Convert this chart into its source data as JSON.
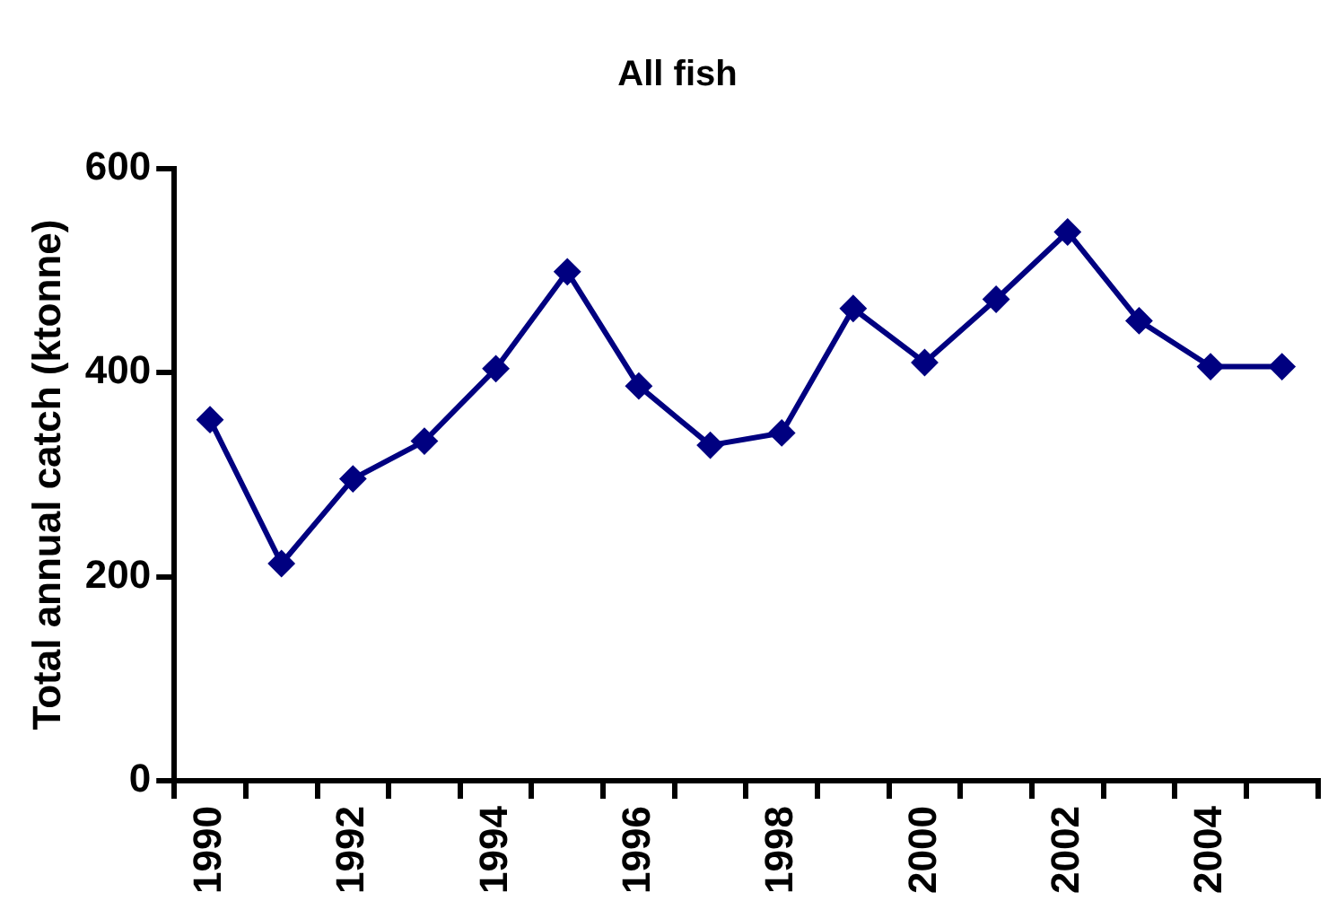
{
  "chart_data": {
    "type": "line",
    "title": "All fish",
    "ylabel": "Total annual catch (ktonne)",
    "categories": [
      "1990",
      null,
      "1992",
      null,
      "1994",
      null,
      "1996",
      null,
      "1998",
      null,
      "2000",
      null,
      "2002",
      null,
      "2004",
      null
    ],
    "series": [
      {
        "color": "#000080",
        "values": [
          354,
          213,
          296,
          333,
          404,
          499,
          387,
          329,
          341,
          463,
          410,
          472,
          538,
          451,
          406,
          406
        ]
      }
    ],
    "ylim": [
      0,
      600
    ],
    "yticks": [
      0,
      200,
      400,
      600
    ],
    "grid": false,
    "legend": false,
    "marker": "diamond",
    "line_style": "solid"
  }
}
